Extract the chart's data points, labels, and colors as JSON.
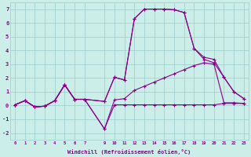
{
  "xlabel": "Windchill (Refroidissement éolien,°C)",
  "background_color": "#cceee8",
  "grid_color": "#99cccc",
  "line_color": "#880088",
  "xlim": [
    -0.5,
    23.5
  ],
  "ylim": [
    -2.5,
    7.5
  ],
  "yticks": [
    -2,
    -1,
    0,
    1,
    2,
    3,
    4,
    5,
    6,
    7
  ],
  "xtick_positions": [
    0,
    1,
    2,
    3,
    4,
    5,
    6,
    7,
    9,
    10,
    11,
    12,
    13,
    14,
    15,
    16,
    17,
    18,
    19,
    20,
    21,
    22,
    23
  ],
  "xtick_labels": [
    "0",
    "1",
    "2",
    "3",
    "4",
    "5",
    "6",
    "7",
    "9",
    "10",
    "11",
    "12",
    "13",
    "14",
    "15",
    "16",
    "17",
    "18",
    "19",
    "20",
    "21",
    "22",
    "23"
  ],
  "series": [
    {
      "x": [
        0,
        1,
        2,
        3,
        4,
        5,
        6,
        7,
        9,
        10,
        11,
        12,
        13,
        14,
        15,
        16,
        17,
        18,
        19,
        20,
        21,
        22,
        23
      ],
      "y": [
        0.05,
        0.35,
        -0.1,
        -0.05,
        0.35,
        1.5,
        0.45,
        0.45,
        0.3,
        2.05,
        1.85,
        6.3,
        7.0,
        7.0,
        7.0,
        6.95,
        6.75,
        4.15,
        3.5,
        3.35,
        2.05,
        1.0,
        0.5
      ]
    },
    {
      "x": [
        0,
        1,
        2,
        3,
        4,
        5,
        6,
        7,
        9,
        10,
        11,
        12,
        13,
        14,
        15,
        16,
        17,
        18,
        19,
        20,
        21,
        22,
        23
      ],
      "y": [
        0.05,
        0.35,
        -0.1,
        -0.05,
        0.35,
        1.5,
        0.45,
        0.45,
        0.3,
        2.05,
        1.85,
        6.3,
        7.0,
        7.0,
        7.0,
        6.95,
        6.75,
        4.15,
        3.35,
        3.1,
        2.05,
        1.0,
        0.5
      ]
    },
    {
      "x": [
        0,
        1,
        2,
        3,
        4,
        5,
        6,
        7,
        9,
        10,
        11,
        12,
        13,
        14,
        15,
        16,
        17,
        18,
        19,
        20,
        21,
        22,
        23
      ],
      "y": [
        0.05,
        0.35,
        -0.1,
        -0.05,
        0.35,
        1.5,
        0.45,
        0.45,
        -1.7,
        0.4,
        0.5,
        1.1,
        1.4,
        1.7,
        2.0,
        2.3,
        2.6,
        2.9,
        3.1,
        3.0,
        0.2,
        0.2,
        0.15
      ]
    },
    {
      "x": [
        0,
        1,
        2,
        3,
        4,
        5,
        6,
        7,
        9,
        10,
        11,
        12,
        13,
        14,
        15,
        16,
        17,
        18,
        19,
        20,
        21,
        22,
        23
      ],
      "y": [
        0.05,
        0.35,
        -0.1,
        -0.05,
        0.35,
        1.5,
        0.45,
        0.45,
        -1.7,
        0.05,
        0.05,
        0.05,
        0.05,
        0.05,
        0.05,
        0.05,
        0.05,
        0.05,
        0.05,
        0.05,
        0.15,
        0.15,
        0.15
      ]
    }
  ]
}
